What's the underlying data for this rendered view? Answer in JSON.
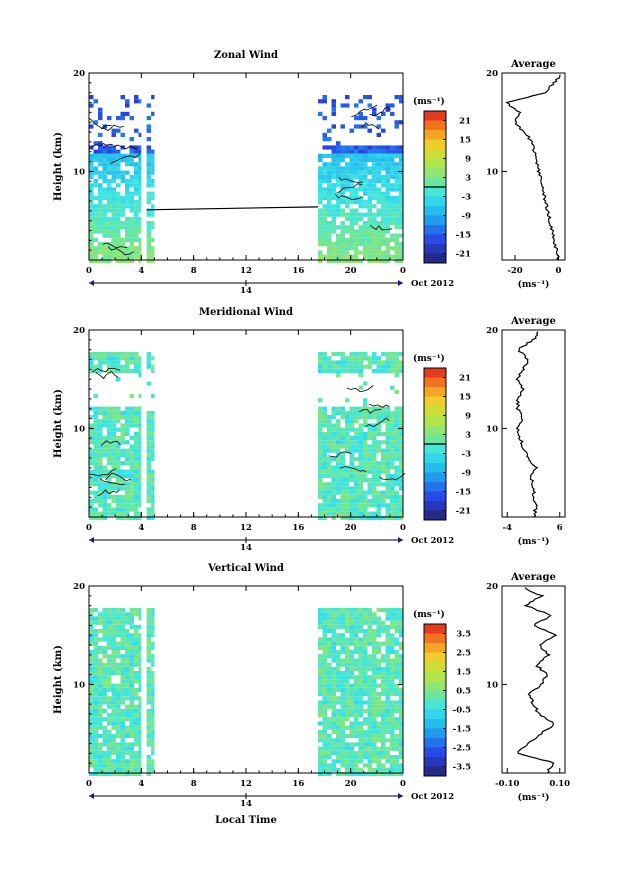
{
  "figure": {
    "date_label": "Oct 2012",
    "day_label": "14",
    "x_axis_label": "Local Time",
    "y_axis_label": "Height (km)",
    "unit_label": "(ms⁻¹)",
    "average_title": "Average"
  },
  "chart_data": [
    {
      "type": "heatmap",
      "title": "Zonal Wind",
      "xlabel": "",
      "ylabel": "Height (km)",
      "x_ticks": [
        "0",
        "4",
        "8",
        "12",
        "16",
        "20",
        "0"
      ],
      "x_range": [
        0,
        24
      ],
      "y_ticks": [
        "10",
        "20"
      ],
      "y_range": [
        1,
        20
      ],
      "data_segments_hours": [
        [
          0,
          4.0
        ],
        [
          4.4,
          5.0
        ],
        [
          17.5,
          24.0
        ]
      ],
      "colorbar": {
        "label": "(ms⁻¹)",
        "ticks": [
          "21",
          "15",
          "9",
          "3",
          "-3",
          "-9",
          "-15",
          "-21"
        ],
        "range": [
          -24,
          24
        ],
        "zero_line": true
      },
      "average_profile": {
        "title": "Average",
        "xlabel": "(ms⁻¹)",
        "x_ticks": [
          "-20",
          "0"
        ],
        "x_range": [
          -26,
          3
        ],
        "y_ticks": [
          "10",
          "20"
        ],
        "height": [
          1,
          2,
          3,
          4,
          5,
          6,
          7,
          8,
          9,
          10,
          11,
          12,
          13,
          14,
          15,
          16,
          17,
          18,
          19,
          20
        ],
        "value": [
          0,
          -1,
          -2,
          -3,
          -4,
          -5,
          -6,
          -7,
          -8,
          -9,
          -10,
          -11,
          -12,
          -16,
          -20,
          -18,
          -24,
          -6,
          -2,
          2
        ]
      }
    },
    {
      "type": "heatmap",
      "title": "Meridional Wind",
      "xlabel": "",
      "ylabel": "Height (km)",
      "x_ticks": [
        "0",
        "4",
        "8",
        "12",
        "16",
        "20",
        "0"
      ],
      "x_range": [
        0,
        24
      ],
      "y_ticks": [
        "10",
        "20"
      ],
      "y_range": [
        1,
        20
      ],
      "data_segments_hours": [
        [
          0,
          4.0
        ],
        [
          4.4,
          5.0
        ],
        [
          17.5,
          24.0
        ]
      ],
      "colorbar": {
        "label": "(ms⁻¹)",
        "ticks": [
          "21",
          "15",
          "9",
          "3",
          "-3",
          "-9",
          "-15",
          "-21"
        ],
        "range": [
          -24,
          24
        ],
        "zero_line": true
      },
      "average_profile": {
        "title": "Average",
        "xlabel": "(ms⁻¹)",
        "x_ticks": [
          "-4",
          "6"
        ],
        "x_range": [
          -5,
          7
        ],
        "y_ticks": [
          "10",
          "20"
        ],
        "height": [
          1,
          2,
          3,
          4,
          5,
          6,
          7,
          8,
          9,
          10,
          11,
          12,
          13,
          14,
          15,
          16,
          17,
          18,
          19,
          20
        ],
        "value": [
          1,
          1.5,
          1,
          1,
          0.5,
          1.5,
          0,
          -1,
          -1.5,
          -2,
          -1,
          -2,
          -2,
          -1,
          -2,
          -1,
          0,
          -2,
          1,
          2
        ]
      }
    },
    {
      "type": "heatmap",
      "title": "Vertical Wind",
      "xlabel": "Local Time",
      "ylabel": "Height (km)",
      "x_ticks": [
        "0",
        "4",
        "8",
        "12",
        "16",
        "20",
        "0"
      ],
      "x_range": [
        0,
        24
      ],
      "y_ticks": [
        "10",
        "20"
      ],
      "y_range": [
        1,
        20
      ],
      "data_segments_hours": [
        [
          0,
          4.0
        ],
        [
          4.4,
          5.0
        ],
        [
          17.5,
          24.0
        ]
      ],
      "colorbar": {
        "label": "(ms⁻¹)",
        "ticks": [
          "3.5",
          "2.5",
          "1.5",
          "0.5",
          "-0.5",
          "-1.5",
          "-2.5",
          "-3.5"
        ],
        "range": [
          -4,
          4
        ],
        "zero_line": false
      },
      "average_profile": {
        "title": "Average",
        "xlabel": "(ms⁻¹)",
        "x_ticks": [
          "-0.10",
          "0.10"
        ],
        "x_range": [
          -0.12,
          0.12
        ],
        "y_ticks": [
          "10",
          "20"
        ],
        "height": [
          1,
          2,
          3,
          4,
          5,
          6,
          7,
          8,
          9,
          10,
          11,
          12,
          13,
          14,
          15,
          16,
          17,
          18,
          19,
          20
        ],
        "value": [
          0.05,
          0.08,
          -0.06,
          -0.02,
          0.03,
          0.08,
          0.02,
          0.0,
          -0.02,
          0.03,
          0.05,
          0.01,
          0.06,
          0.02,
          0.09,
          0.0,
          0.07,
          -0.03,
          0.03,
          -0.05
        ]
      }
    }
  ]
}
